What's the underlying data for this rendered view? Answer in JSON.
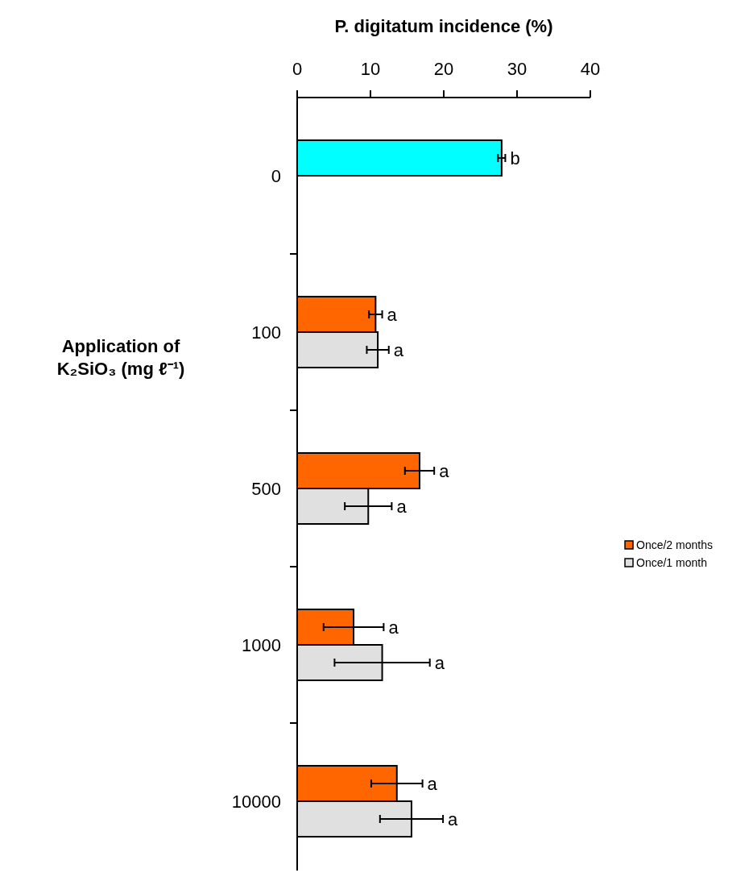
{
  "chart_data": {
    "type": "bar",
    "orientation": "horizontal",
    "xlabel": "P. digitatum incidence (%)",
    "ylabel": "Application of K₂SiO₃ (mg ℓ⁻¹)",
    "categories": [
      "0",
      "100",
      "500",
      "1000",
      "10000"
    ],
    "series": [
      {
        "name": "Once/2 months",
        "color": "#ff6600",
        "colors": [
          "#00ffff",
          "#ff6600",
          "#ff6600",
          "#ff6600",
          "#ff6600"
        ],
        "values": [
          27.9,
          10.7,
          16.7,
          7.7,
          13.6
        ],
        "errors": [
          0.5,
          0.9,
          2.0,
          4.1,
          3.5
        ],
        "value_labels": [
          "b",
          "a",
          "a",
          "a",
          "a"
        ]
      },
      {
        "name": "Once/1 month",
        "color": "#e0e0e0",
        "values": [
          null,
          11.0,
          9.7,
          11.6,
          15.6
        ],
        "errors": [
          null,
          1.5,
          3.2,
          6.5,
          4.3
        ],
        "value_labels": [
          null,
          "a",
          "a",
          "a",
          "a"
        ]
      }
    ],
    "xlim": [
      0,
      40
    ],
    "xticks": [
      0,
      10,
      20,
      30,
      40
    ],
    "legend": "right"
  }
}
